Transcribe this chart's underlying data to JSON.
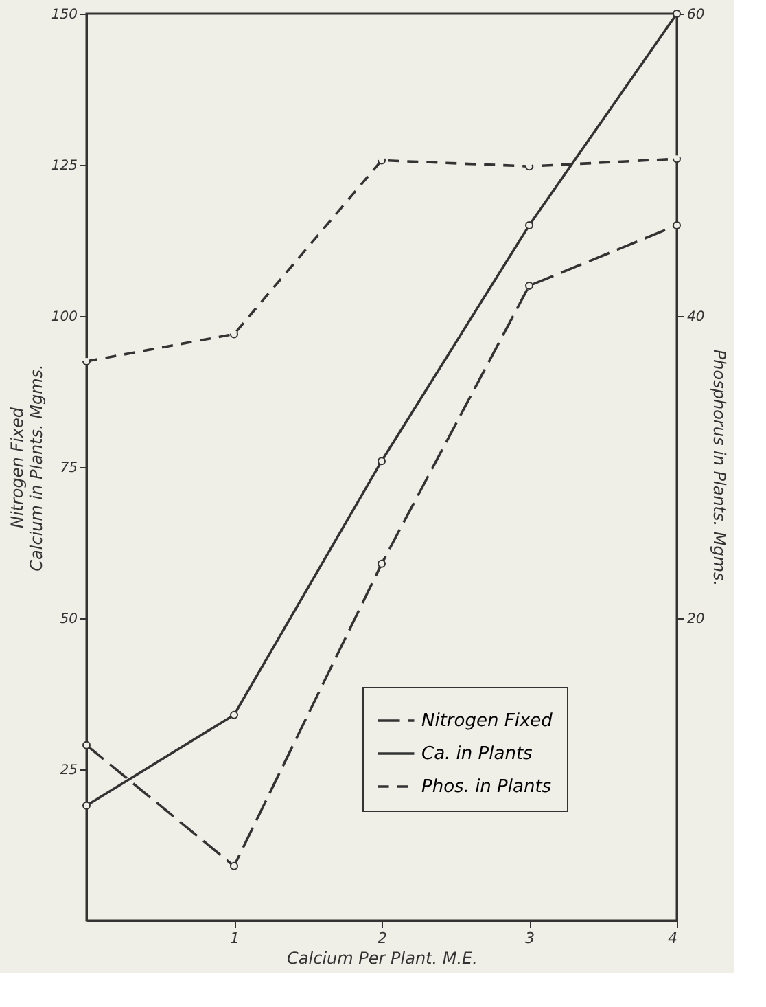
{
  "chart_data": {
    "type": "line",
    "xlabel": "Calcium Per Plant. M.E.",
    "ylabel": "Nitrogen Fixed\nCalcium in Plants. Mgms.",
    "y2label": "Phosphorus in Plants. Mgms.",
    "x": [
      0,
      1,
      2,
      3,
      4
    ],
    "xlim": [
      0,
      4
    ],
    "xticks": [
      1,
      2,
      3,
      4
    ],
    "ylim": [
      0,
      150
    ],
    "yticks": [
      25,
      50,
      75,
      100,
      125,
      150
    ],
    "y2lim": [
      0,
      60
    ],
    "y2ticks": [
      20,
      40,
      60
    ],
    "series": [
      {
        "name": "Nitrogen Fixed",
        "color": "#333333",
        "line_style": "dashed",
        "values": [
          29,
          9,
          59,
          105,
          115
        ]
      },
      {
        "name": "Ca. in Plants",
        "color": "#333333",
        "line_style": "solid",
        "values": [
          19,
          34,
          76,
          115,
          150
        ]
      },
      {
        "name": "Phos. in Plants",
        "color": "#333333",
        "line_style": "dashed",
        "axis": "y2",
        "values": [
          37,
          38.8,
          50.3,
          49.9,
          50.4
        ]
      }
    ],
    "marker": "circle",
    "grid": false,
    "legend": "bottom right"
  }
}
